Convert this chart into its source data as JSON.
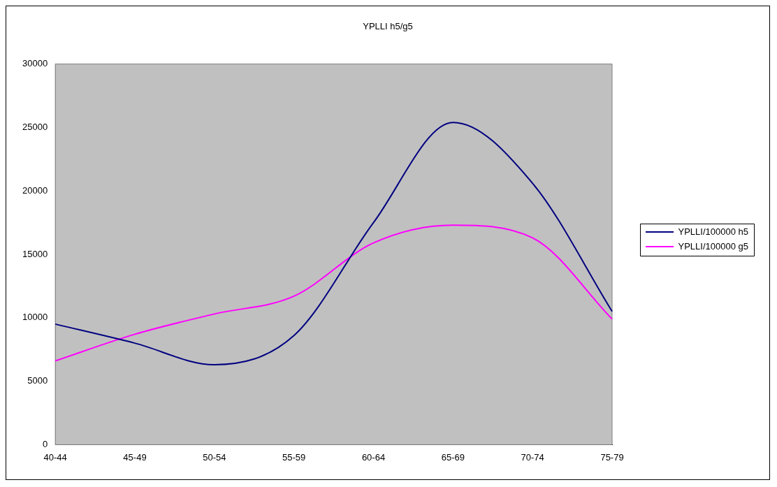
{
  "chart_data": {
    "type": "line",
    "title": "YPLLI h5/g5",
    "categories": [
      "40-44",
      "45-49",
      "50-54",
      "55-59",
      "60-64",
      "65-69",
      "70-74",
      "75-79"
    ],
    "series": [
      {
        "name": "YPLLI/100000 h5",
        "color": "#000080",
        "values": [
          9500,
          8000,
          6300,
          8600,
          17500,
          25400,
          20600,
          10500
        ]
      },
      {
        "name": "YPLLI/100000 g5",
        "color": "#ff00ff",
        "values": [
          6600,
          8700,
          10300,
          11700,
          15900,
          17300,
          16300,
          9900
        ]
      }
    ],
    "ylim": [
      0,
      30000
    ],
    "yticks": [
      0,
      5000,
      10000,
      15000,
      20000,
      25000,
      30000
    ],
    "legend": "right",
    "marker": "none",
    "line_style": "solid"
  }
}
